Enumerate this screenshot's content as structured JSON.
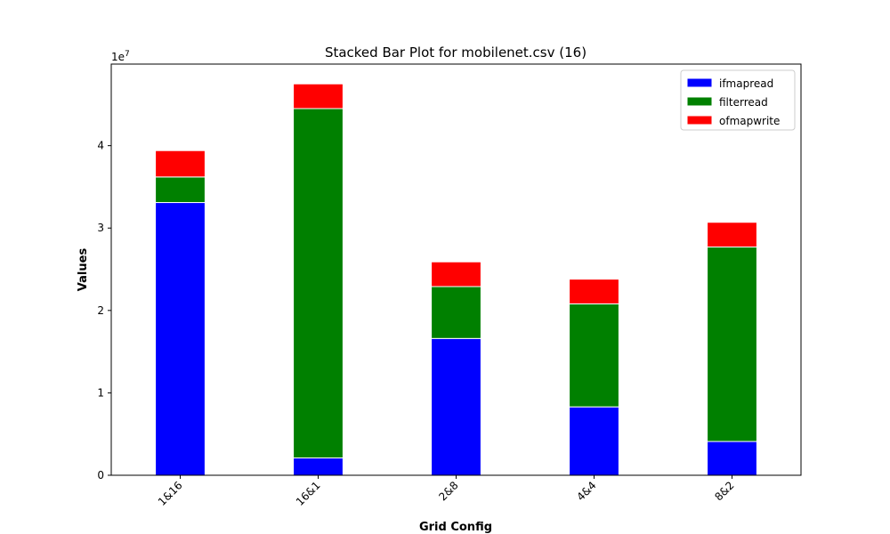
{
  "chart_data": {
    "type": "bar",
    "stacked": true,
    "title": "Stacked Bar Plot for mobilenet.csv (16)",
    "xlabel": "Grid Config",
    "ylabel": "Values",
    "y_multiplier_label": "1e7",
    "y_tick_labels": [
      "0",
      "1",
      "2",
      "3",
      "4"
    ],
    "ylim": [
      0,
      49900000
    ],
    "categories": [
      "1&16",
      "16&1",
      "2&8",
      "4&4",
      "8&2"
    ],
    "series": [
      {
        "name": "ifmapread",
        "color": "#0000ff",
        "values": [
          33100000,
          2100000,
          16600000,
          8300000,
          4100000
        ]
      },
      {
        "name": "filterread",
        "color": "#008000",
        "values": [
          3100000,
          42400000,
          6300000,
          12500000,
          23600000
        ]
      },
      {
        "name": "ofmapwrite",
        "color": "#ff0000",
        "values": [
          3200000,
          3000000,
          3000000,
          3000000,
          3000000
        ]
      }
    ],
    "legend_position": "top-right",
    "grid": false
  }
}
